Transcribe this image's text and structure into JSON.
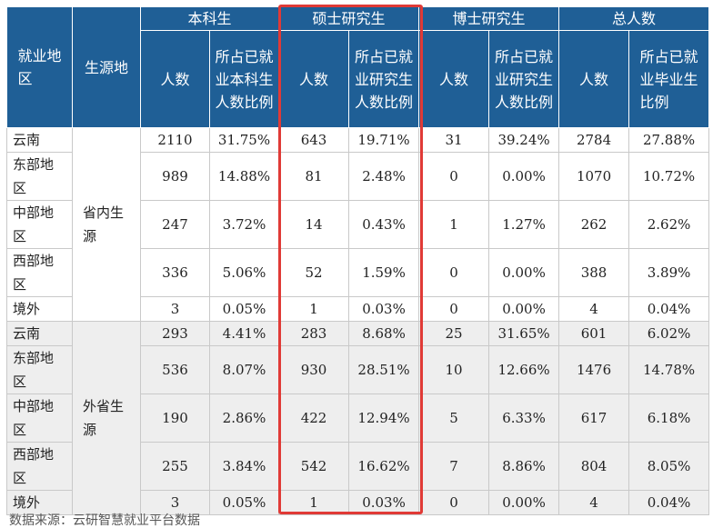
{
  "header": {
    "col_place": "就业地区",
    "col_origin": "生源地",
    "groups": [
      "本科生",
      "硕士研究生",
      "博士研究生",
      "总人数"
    ],
    "count": "人数",
    "ratios": [
      "所占已就业本科生人数比例",
      "所占已就业研究生人数比例",
      "所占已就业研究生人数比例",
      "所占已就业毕业生比例"
    ]
  },
  "origins": [
    "省内生源",
    "外省生源"
  ],
  "rows": [
    {
      "place": "云南",
      "v": [
        "2110",
        "31.75%",
        "643",
        "19.71%",
        "31",
        "39.24%",
        "2784",
        "27.88%"
      ]
    },
    {
      "place": "东部地区",
      "v": [
        "989",
        "14.88%",
        "81",
        "2.48%",
        "0",
        "0.00%",
        "1070",
        "10.72%"
      ]
    },
    {
      "place": "中部地区",
      "v": [
        "247",
        "3.72%",
        "14",
        "0.43%",
        "1",
        "1.27%",
        "262",
        "2.62%"
      ]
    },
    {
      "place": "西部地区",
      "v": [
        "336",
        "5.06%",
        "52",
        "1.59%",
        "0",
        "0.00%",
        "388",
        "3.89%"
      ]
    },
    {
      "place": "境外",
      "v": [
        "3",
        "0.05%",
        "1",
        "0.03%",
        "0",
        "0.00%",
        "4",
        "0.04%"
      ]
    },
    {
      "place": "云南",
      "v": [
        "293",
        "4.41%",
        "283",
        "8.68%",
        "25",
        "31.65%",
        "601",
        "6.02%"
      ]
    },
    {
      "place": "东部地区",
      "v": [
        "536",
        "8.07%",
        "930",
        "28.51%",
        "10",
        "12.66%",
        "1476",
        "14.78%"
      ]
    },
    {
      "place": "中部地区",
      "v": [
        "190",
        "2.86%",
        "422",
        "12.94%",
        "5",
        "6.33%",
        "617",
        "6.18%"
      ]
    },
    {
      "place": "西部地区",
      "v": [
        "255",
        "3.84%",
        "542",
        "16.62%",
        "7",
        "8.86%",
        "804",
        "8.05%"
      ]
    },
    {
      "place": "境外",
      "v": [
        "3",
        "0.05%",
        "1",
        "0.03%",
        "0",
        "0.00%",
        "4",
        "0.04%"
      ]
    }
  ],
  "footnote": "数据来源：云研智慧就业平台数据",
  "colors": {
    "header_bg": "#1f5f96",
    "highlight": "#e03a36",
    "stripe": "#eeeeee"
  }
}
